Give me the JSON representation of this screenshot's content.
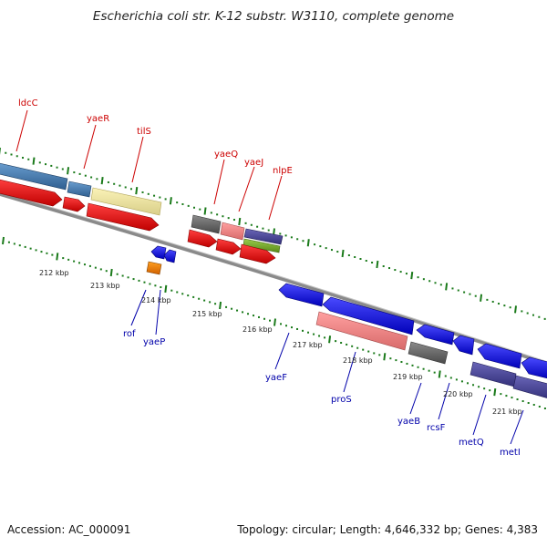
{
  "header": {
    "title": "Escherichia coli str. K-12 substr. W3110, complete genome"
  },
  "footer": {
    "accession": "Accession: AC_000091",
    "summary": "Topology: circular; Length: 4,646,332 bp; Genes: 4,383"
  },
  "colors": {
    "forward_label": "#cc0000",
    "reverse_label": "#0000aa",
    "tick": "#1a7a1a",
    "backbone": "#8a8a8a"
  },
  "kbp_labels": [
    "212 kbp",
    "213 kbp",
    "214 kbp",
    "215 kbp",
    "216 kbp",
    "217 kbp",
    "218 kbp",
    "219 kbp",
    "220 kbp",
    "221 kbp"
  ],
  "genes_top": [
    "ldcC",
    "yaeR",
    "tilS",
    "yaeQ",
    "yaeJ",
    "nlpE"
  ],
  "genes_bottom": [
    "rof",
    "yaeP",
    "yaeF",
    "proS",
    "yaeB",
    "rcsF",
    "metQ",
    "metI"
  ]
}
